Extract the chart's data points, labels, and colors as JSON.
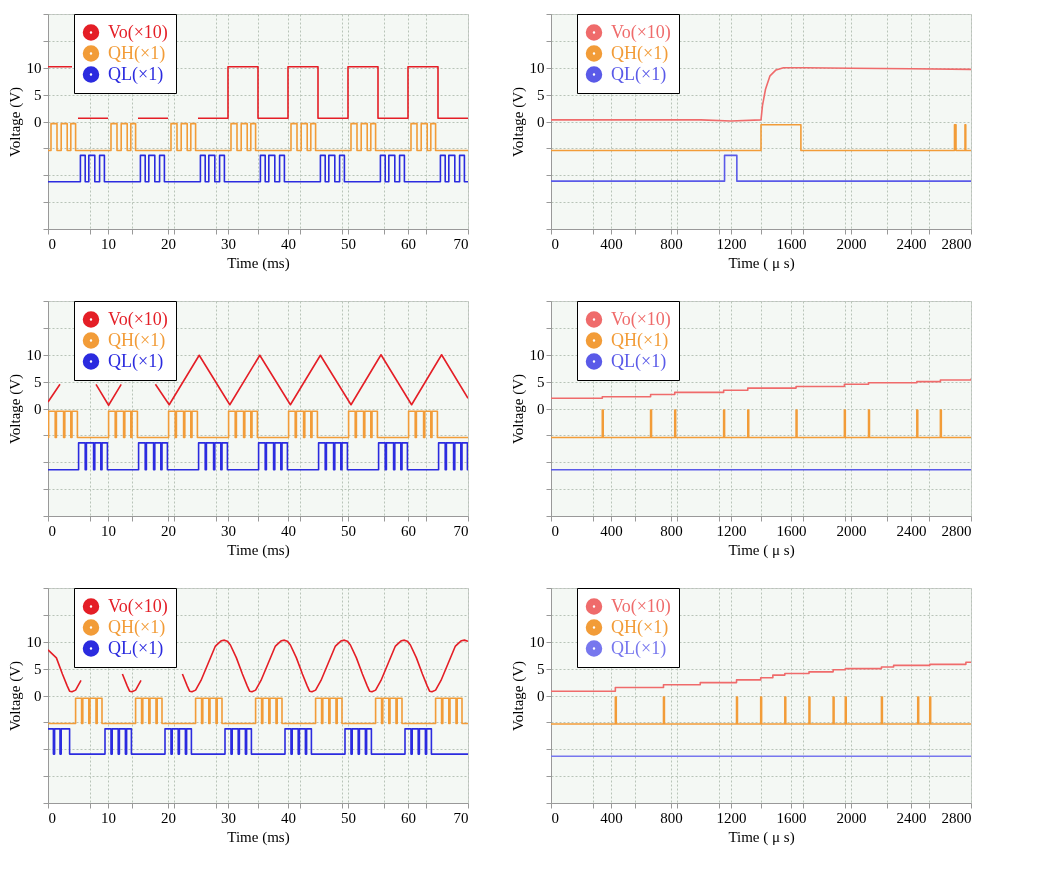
{
  "chart_data": [
    {
      "type": "line",
      "xlabel": "Time (ms)",
      "ylabel": "Voltage (V)",
      "xlim": [
        0,
        70
      ],
      "ylim": [
        -20,
        20
      ],
      "xticks": [
        0,
        {
          "value": 7,
          "label": null
        },
        10,
        {
          "value": 14,
          "label": null
        },
        20,
        {
          "value": 21,
          "label": null
        },
        {
          "value": 28,
          "label": null
        },
        30,
        {
          "value": 35,
          "label": null
        },
        40,
        {
          "value": 42,
          "label": null
        },
        {
          "value": 49,
          "label": null
        },
        50,
        {
          "value": 56,
          "label": null
        },
        60,
        {
          "value": 63,
          "label": null
        },
        70
      ],
      "yticks": [
        {
          "value": -20,
          "label": null
        },
        {
          "value": -15,
          "label": null
        },
        {
          "value": -10,
          "label": null
        },
        {
          "value": -5,
          "label": null
        },
        0,
        5,
        10,
        {
          "value": 15,
          "label": null
        },
        {
          "value": 20,
          "label": null
        }
      ],
      "grid": true,
      "legend": "top left",
      "series": [
        {
          "name": "Vo(×10)",
          "color": "#e41e26",
          "type": "line",
          "x": [
            0,
            4,
            4.5,
            5,
            10,
            12.5,
            15,
            20,
            22.5,
            25,
            30,
            30,
            35,
            35,
            40,
            40,
            45,
            45,
            50,
            50,
            55,
            55,
            60,
            60,
            65,
            65,
            70
          ],
          "values": [
            10.2,
            10.2,
            null,
            0.6,
            0.6,
            null,
            0.6,
            0.6,
            null,
            0.6,
            0.6,
            10.2,
            10.2,
            0.6,
            0.6,
            10.2,
            10.2,
            0.6,
            0.6,
            10.2,
            10.2,
            0.6,
            0.6,
            10.2,
            10.2,
            0.6,
            0.6
          ]
        },
        {
          "name": "QH(×1)",
          "color": "#f29c38",
          "type": "step",
          "x": [
            0,
            0.5,
            1.5,
            2.2,
            3.2,
            3.8,
            4.6,
            10.5,
            11.5,
            12.2,
            13.2,
            13.8,
            14.6,
            20.5,
            21.5,
            22.2,
            23.2,
            23.8,
            24.6,
            30.5,
            31.5,
            32.2,
            33.2,
            33.8,
            34.6,
            40.5,
            41.5,
            42.2,
            43.2,
            43.8,
            44.6,
            50.5,
            51.5,
            52.2,
            53.2,
            53.8,
            54.6,
            60.5,
            61.5,
            62.2,
            63.2,
            63.8,
            64.6,
            70
          ],
          "values": [
            -5.4,
            -0.4,
            -5.4,
            -0.4,
            -5.4,
            -0.4,
            -5.4,
            -0.4,
            -5.4,
            -0.4,
            -5.4,
            -0.4,
            -5.4,
            -0.4,
            -5.4,
            -0.4,
            -5.4,
            -0.4,
            -5.4,
            -0.4,
            -5.4,
            -0.4,
            -5.4,
            -0.4,
            -5.4,
            -0.4,
            -5.4,
            -0.4,
            -5.4,
            -0.4,
            -5.4,
            -0.4,
            -5.4,
            -0.4,
            -5.4,
            -0.4,
            -5.4,
            -0.4,
            -5.4,
            -0.4,
            -5.4,
            -0.4,
            -5.4,
            -5.4
          ]
        },
        {
          "name": "QL(×1)",
          "color": "#2b2bdf",
          "type": "step",
          "x": [
            0,
            5.4,
            6.2,
            6.8,
            7.8,
            8.6,
            9.4,
            15.4,
            16.2,
            16.8,
            17.8,
            18.6,
            19.4,
            25.4,
            26.2,
            26.8,
            27.8,
            28.6,
            29.4,
            35.4,
            36.2,
            36.8,
            37.8,
            38.6,
            39.4,
            45.4,
            46.2,
            46.8,
            47.8,
            48.6,
            49.4,
            55.4,
            56.2,
            56.8,
            57.8,
            58.6,
            59.4,
            65.4,
            66.2,
            66.8,
            67.8,
            68.6,
            69.4,
            70
          ],
          "values": [
            -11.2,
            -6.3,
            -11.2,
            -6.3,
            -11.2,
            -6.3,
            -11.2,
            -6.3,
            -11.2,
            -6.3,
            -11.2,
            -6.3,
            -11.2,
            -6.3,
            -11.2,
            -6.3,
            -11.2,
            -6.3,
            -11.2,
            -6.3,
            -11.2,
            -6.3,
            -11.2,
            -6.3,
            -11.2,
            -6.3,
            -11.2,
            -6.3,
            -11.2,
            -6.3,
            -11.2,
            -6.3,
            -11.2,
            -6.3,
            -11.2,
            -6.3,
            -11.2,
            -6.3,
            -11.2,
            -6.3,
            -11.2,
            -6.3,
            -11.2,
            -11.2
          ]
        }
      ]
    },
    {
      "type": "line",
      "xlabel": "Time ( μ s)",
      "ylabel": "Voltage (V)",
      "xlim": [
        0,
        2800
      ],
      "ylim": [
        -20,
        20
      ],
      "xticks": [
        0,
        {
          "value": 280,
          "label": null
        },
        400,
        {
          "value": 560,
          "label": null
        },
        800,
        {
          "value": 840,
          "label": null
        },
        {
          "value": 1120,
          "label": null
        },
        1200,
        {
          "value": 1400,
          "label": null
        },
        1600,
        {
          "value": 1680,
          "label": null
        },
        {
          "value": 1960,
          "label": null
        },
        2000,
        {
          "value": 2240,
          "label": null
        },
        2400,
        {
          "value": 2520,
          "label": null
        },
        2800
      ],
      "yticks": [
        {
          "value": -20,
          "label": null
        },
        {
          "value": -15,
          "label": null
        },
        {
          "value": -10,
          "label": null
        },
        {
          "value": -5,
          "label": null
        },
        0,
        5,
        10,
        {
          "value": 15,
          "label": null
        },
        {
          "value": 20,
          "label": null
        }
      ],
      "grid": true,
      "legend": "top left",
      "series": [
        {
          "name": "Vo(×10)",
          "color": "#ef6b6b",
          "type": "line",
          "x": [
            0,
            1000,
            1200,
            1400,
            1410,
            1430,
            1460,
            1500,
            1550,
            1700,
            2000,
            2400,
            2800
          ],
          "values": [
            0.3,
            0.3,
            0.1,
            0.3,
            3,
            6,
            8.5,
            9.6,
            10,
            10,
            9.9,
            9.8,
            9.7
          ]
        },
        {
          "name": "QH(×1)",
          "color": "#f29c38",
          "type": "step",
          "x": [
            0,
            1400,
            1666,
            2690,
            2700,
            2760,
            2765,
            2800
          ],
          "values": [
            -5.4,
            -0.6,
            -5.4,
            -0.6,
            -5.4,
            -0.6,
            -5.4,
            -5.4
          ]
        },
        {
          "name": "QL(×1)",
          "color": "#5a5ae8",
          "type": "step",
          "x": [
            0,
            1157,
            1239,
            2800
          ],
          "values": [
            -11.1,
            -6.3,
            -11.1,
            -11.1
          ]
        }
      ]
    },
    {
      "type": "line",
      "xlabel": "Time (ms)",
      "ylabel": "Voltage (V)",
      "xlim": [
        0,
        70
      ],
      "ylim": [
        -20,
        20
      ],
      "xticks": [
        0,
        {
          "value": 7,
          "label": null
        },
        10,
        {
          "value": 14,
          "label": null
        },
        20,
        {
          "value": 21,
          "label": null
        },
        {
          "value": 28,
          "label": null
        },
        30,
        {
          "value": 35,
          "label": null
        },
        40,
        {
          "value": 42,
          "label": null
        },
        {
          "value": 49,
          "label": null
        },
        50,
        {
          "value": 56,
          "label": null
        },
        60,
        {
          "value": 63,
          "label": null
        },
        70
      ],
      "yticks": [
        {
          "value": -20,
          "label": null
        },
        {
          "value": -15,
          "label": null
        },
        {
          "value": -10,
          "label": null
        },
        {
          "value": -5,
          "label": null
        },
        0,
        5,
        10,
        {
          "value": 15,
          "label": null
        },
        {
          "value": 20,
          "label": null
        }
      ],
      "grid": true,
      "legend": "top left",
      "series": [
        {
          "name": "Vo(×10)",
          "color": "#e41e26",
          "type": "line",
          "x": [
            0,
            2.0,
            3.5,
            8.0,
            10.1,
            12.2,
            15.1,
            17.9,
            20.2,
            25.2,
            30.3,
            35.3,
            40.4,
            45.4,
            50.5,
            55.5,
            60.6,
            65.6,
            70
          ],
          "values": [
            1.2,
            4.5,
            null,
            4.5,
            0.6,
            4.5,
            null,
            4.5,
            0.7,
            9.9,
            0.7,
            9.9,
            0.7,
            9.9,
            0.7,
            10,
            0.7,
            10,
            1.9
          ]
        },
        {
          "name": "QH(×1)",
          "color": "#f29c38",
          "type": "step",
          "x": [
            0,
            0.1,
            1.2,
            1.4,
            2.6,
            2.8,
            3.8,
            4.0,
            4.9,
            10.1,
            11.2,
            11.4,
            12.6,
            12.8,
            13.8,
            14.0,
            14.9,
            20.1,
            21.2,
            21.4,
            22.6,
            22.8,
            23.8,
            24.0,
            24.9,
            30.1,
            31.2,
            31.4,
            32.6,
            32.8,
            33.8,
            34.0,
            34.9,
            40.1,
            41.2,
            41.4,
            42.6,
            42.8,
            43.8,
            44.0,
            44.9,
            50.1,
            51.2,
            51.4,
            52.6,
            52.8,
            53.8,
            54.0,
            54.9,
            60.1,
            61.2,
            61.4,
            62.6,
            62.8,
            63.8,
            64.0,
            64.9,
            70
          ],
          "values": [
            -5.4,
            -0.5,
            -5.4,
            -0.5,
            -5.4,
            -0.5,
            -5.4,
            -0.5,
            -5.4,
            -0.5,
            -5.4,
            -0.5,
            -5.4,
            -0.5,
            -5.4,
            -0.5,
            -5.4,
            -0.5,
            -5.4,
            -0.5,
            -5.4,
            -0.5,
            -5.4,
            -0.5,
            -5.4,
            -0.5,
            -5.4,
            -0.5,
            -5.4,
            -0.5,
            -5.4,
            -0.5,
            -5.4,
            -0.5,
            -5.4,
            -0.5,
            -5.4,
            -0.5,
            -5.4,
            -0.5,
            -5.4,
            -0.5,
            -5.4,
            -0.5,
            -5.4,
            -0.5,
            -5.4,
            -0.5,
            -5.4,
            -0.5,
            -5.4,
            -0.5,
            -5.4,
            -0.5,
            -5.4,
            -0.5,
            -5.4,
            -5.4
          ]
        },
        {
          "name": "QL(×1)",
          "color": "#2b2bdf",
          "type": "step",
          "x": [
            0,
            5.1,
            6.2,
            6.4,
            7.6,
            7.8,
            8.8,
            9.0,
            9.9,
            15.1,
            16.2,
            16.4,
            17.6,
            17.8,
            18.8,
            19.0,
            19.9,
            25.1,
            26.2,
            26.4,
            27.6,
            27.8,
            28.8,
            29.0,
            29.9,
            35.1,
            36.2,
            36.4,
            37.6,
            37.8,
            38.8,
            39.0,
            39.9,
            45.1,
            46.2,
            46.4,
            47.6,
            47.8,
            48.8,
            49.0,
            49.9,
            55.1,
            56.2,
            56.4,
            57.6,
            57.8,
            58.8,
            59.0,
            59.9,
            65.1,
            66.2,
            66.4,
            67.6,
            67.8,
            68.8,
            69.0,
            69.9,
            70
          ],
          "values": [
            -11.4,
            -6.4,
            -11.4,
            -6.4,
            -11.4,
            -6.4,
            -11.4,
            -6.4,
            -11.4,
            -6.4,
            -11.4,
            -6.4,
            -11.4,
            -6.4,
            -11.4,
            -6.4,
            -11.4,
            -6.4,
            -11.4,
            -6.4,
            -11.4,
            -6.4,
            -11.4,
            -6.4,
            -11.4,
            -6.4,
            -11.4,
            -6.4,
            -11.4,
            -6.4,
            -11.4,
            -6.4,
            -11.4,
            -6.4,
            -11.4,
            -6.4,
            -11.4,
            -6.4,
            -11.4,
            -6.4,
            -11.4,
            -6.4,
            -11.4,
            -6.4,
            -11.4,
            -6.4,
            -11.4,
            -6.4,
            -11.4,
            -6.4,
            -11.4,
            -6.4,
            -11.4,
            -6.4,
            -11.4,
            -6.4,
            -11.4,
            -11.4
          ]
        }
      ]
    },
    {
      "type": "line",
      "xlabel": "Time ( μ s)",
      "ylabel": "Voltage (V)",
      "xlim": [
        0,
        2800
      ],
      "ylim": [
        -20,
        20
      ],
      "xticks": [
        0,
        {
          "value": 280,
          "label": null
        },
        400,
        {
          "value": 560,
          "label": null
        },
        800,
        {
          "value": 840,
          "label": null
        },
        {
          "value": 1120,
          "label": null
        },
        1200,
        {
          "value": 1400,
          "label": null
        },
        1600,
        {
          "value": 1680,
          "label": null
        },
        {
          "value": 1960,
          "label": null
        },
        2000,
        {
          "value": 2240,
          "label": null
        },
        2400,
        {
          "value": 2520,
          "label": null
        },
        2800
      ],
      "yticks": [
        {
          "value": -20,
          "label": null
        },
        {
          "value": -15,
          "label": null
        },
        {
          "value": -10,
          "label": null
        },
        {
          "value": -5,
          "label": null
        },
        0,
        5,
        10,
        {
          "value": 15,
          "label": null
        },
        {
          "value": 20,
          "label": null
        }
      ],
      "grid": true,
      "legend": "top left",
      "series": [
        {
          "name": "Vo(×10)",
          "color": "#ef6b6b",
          "type": "step",
          "x": [
            0,
            342,
            664,
            825,
            1151,
            1312,
            1634,
            1956,
            2117,
            2439,
            2596,
            2800
          ],
          "values": [
            1.9,
            2.2,
            2.6,
            3.0,
            3.4,
            3.8,
            4.1,
            4.5,
            4.8,
            5.0,
            5.3,
            5.6
          ]
        },
        {
          "name": "QH(×1)",
          "color": "#f29c38",
          "type": "step",
          "x": [
            0,
            342,
            348,
            664,
            670,
            825,
            831,
            1151,
            1157,
            1312,
            1318,
            1634,
            1640,
            1956,
            1962,
            2117,
            2123,
            2439,
            2445,
            2596,
            2602,
            2800
          ],
          "values": [
            -5.4,
            -0.3,
            -5.4,
            -0.3,
            -5.4,
            -0.3,
            -5.4,
            -0.3,
            -5.4,
            -0.3,
            -5.4,
            -0.3,
            -5.4,
            -0.3,
            -5.4,
            -0.3,
            -5.4,
            -0.3,
            -5.4,
            -0.3,
            -5.4,
            -5.4
          ]
        },
        {
          "name": "QL(×1)",
          "color": "#5a5ae8",
          "type": "step",
          "x": [
            0,
            2800
          ],
          "values": [
            -11.4,
            -11.4
          ]
        }
      ]
    },
    {
      "type": "line",
      "xlabel": "Time (ms)",
      "ylabel": "Voltage (V)",
      "xlim": [
        0,
        70
      ],
      "ylim": [
        -20,
        20
      ],
      "xticks": [
        0,
        {
          "value": 7,
          "label": null
        },
        10,
        {
          "value": 14,
          "label": null
        },
        20,
        {
          "value": 21,
          "label": null
        },
        {
          "value": 28,
          "label": null
        },
        30,
        {
          "value": 35,
          "label": null
        },
        40,
        {
          "value": 42,
          "label": null
        },
        {
          "value": 49,
          "label": null
        },
        50,
        {
          "value": 56,
          "label": null
        },
        60,
        {
          "value": 63,
          "label": null
        },
        70
      ],
      "yticks": [
        {
          "value": -20,
          "label": null
        },
        {
          "value": -15,
          "label": null
        },
        {
          "value": -10,
          "label": null
        },
        {
          "value": -5,
          "label": null
        },
        0,
        5,
        10,
        {
          "value": 15,
          "label": null
        },
        {
          "value": 20,
          "label": null
        }
      ],
      "grid": true,
      "legend": "top left",
      "series": [
        {
          "name": "Vo(×10)",
          "color": "#e41e26",
          "type": "line",
          "x": [
            0,
            1.4,
            2.4,
            3.2,
            3.6,
            4,
            4.6,
            5.5,
            8,
            12.4,
            13.2,
            13.6,
            14,
            14.6,
            15.5,
            18,
            22.4,
            23.2,
            23.6,
            24,
            24.6,
            25.5,
            26.7,
            27.9,
            28.9,
            29.4,
            29.9,
            30.4,
            31.4,
            32.4,
            33.2,
            33.6,
            34,
            34.6,
            35.5,
            36.7,
            37.9,
            38.9,
            39.4,
            39.9,
            40.4,
            41.4,
            42.4,
            43.2,
            43.6,
            44,
            44.6,
            45.5,
            46.7,
            47.9,
            48.9,
            49.4,
            49.9,
            50.4,
            51.4,
            52.4,
            53.2,
            53.6,
            54,
            54.6,
            55.5,
            56.7,
            57.9,
            58.9,
            59.4,
            59.9,
            60.4,
            61.4,
            62.4,
            63.2,
            63.6,
            64,
            64.6,
            65.5,
            66.7,
            67.9,
            68.9,
            69.4,
            70
          ],
          "values": [
            8.5,
            7.0,
            4.0,
            1.8,
            0.8,
            0.7,
            1.0,
            2.8,
            null,
            4.0,
            1.8,
            0.8,
            0.7,
            1.0,
            2.8,
            null,
            4.0,
            1.8,
            0.8,
            0.7,
            1.0,
            2.8,
            6.0,
            9.2,
            10.2,
            10.3,
            10.1,
            9.4,
            7.0,
            4.0,
            1.8,
            0.8,
            0.7,
            1.0,
            2.8,
            6.0,
            9.2,
            10.2,
            10.3,
            10.1,
            9.4,
            7.0,
            4.0,
            1.8,
            0.8,
            0.7,
            1.0,
            2.8,
            6.0,
            9.2,
            10.2,
            10.3,
            10.1,
            9.4,
            7.0,
            4.0,
            1.8,
            0.8,
            0.7,
            1.0,
            2.8,
            6.0,
            9.2,
            10.2,
            10.3,
            10.1,
            9.4,
            7.0,
            4.0,
            1.8,
            0.8,
            0.7,
            1.0,
            2.8,
            6.0,
            9.2,
            10.2,
            10.3,
            10.1
          ]
        },
        {
          "name": "QH(×1)",
          "color": "#f29c38",
          "type": "step",
          "x": [
            0,
            4.6,
            5.6,
            5.8,
            6.8,
            7.0,
            8.0,
            8.2,
            9.0,
            14.6,
            15.6,
            15.8,
            16.8,
            17.0,
            18.0,
            18.2,
            19.0,
            24.6,
            25.6,
            25.8,
            26.8,
            27.0,
            28.0,
            28.2,
            29.0,
            34.6,
            35.6,
            35.8,
            36.8,
            37.0,
            38.0,
            38.2,
            39.0,
            44.6,
            45.6,
            45.8,
            46.8,
            47.0,
            48.0,
            48.2,
            49.0,
            54.6,
            55.6,
            55.8,
            56.8,
            57.0,
            58.0,
            58.2,
            59.0,
            64.6,
            65.6,
            65.8,
            66.8,
            67.0,
            68.0,
            68.2,
            69.0,
            70
          ],
          "values": [
            -5.2,
            -0.5,
            -5.2,
            -0.5,
            -5.2,
            -0.5,
            -5.2,
            -0.5,
            -5.2,
            -0.5,
            -5.2,
            -0.5,
            -5.2,
            -0.5,
            -5.2,
            -0.5,
            -5.2,
            -0.5,
            -5.2,
            -0.5,
            -5.2,
            -0.5,
            -5.2,
            -0.5,
            -5.2,
            -0.5,
            -5.2,
            -0.5,
            -5.2,
            -0.5,
            -5.2,
            -0.5,
            -5.2,
            -0.5,
            -5.2,
            -0.5,
            -5.2,
            -0.5,
            -5.2,
            -0.5,
            -5.2,
            -0.5,
            -5.2,
            -0.5,
            -5.2,
            -0.5,
            -5.2,
            -0.5,
            -5.2,
            -0.5,
            -5.2,
            -0.5,
            -5.2,
            -0.5,
            -5.2,
            -0.5,
            -5.2,
            -5.2
          ]
        },
        {
          "name": "QL(×1)",
          "color": "#2b2bdf",
          "type": "step",
          "x": [
            0,
            0.9,
            1.1,
            2.0,
            2.2,
            3.6,
            9.5,
            10.5,
            10.7,
            11.7,
            11.9,
            12.9,
            13.1,
            13.9,
            19.5,
            20.5,
            20.7,
            21.7,
            21.9,
            22.9,
            23.1,
            23.9,
            29.5,
            30.5,
            30.7,
            31.7,
            31.9,
            32.9,
            33.1,
            33.9,
            39.5,
            40.5,
            40.7,
            41.7,
            41.9,
            42.9,
            43.1,
            43.9,
            49.5,
            50.5,
            50.7,
            51.7,
            51.9,
            52.9,
            53.1,
            53.9,
            59.5,
            60.5,
            60.7,
            61.7,
            61.9,
            62.9,
            63.1,
            63.9,
            70
          ],
          "values": [
            -6.2,
            -10.9,
            -6.2,
            -10.9,
            -6.2,
            -10.9,
            -6.2,
            -10.9,
            -6.2,
            -10.9,
            -6.2,
            -10.9,
            -6.2,
            -10.9,
            -6.2,
            -10.9,
            -6.2,
            -10.9,
            -6.2,
            -10.9,
            -6.2,
            -10.9,
            -6.2,
            -10.9,
            -6.2,
            -10.9,
            -6.2,
            -10.9,
            -6.2,
            -10.9,
            -6.2,
            -10.9,
            -6.2,
            -10.9,
            -6.2,
            -10.9,
            -6.2,
            -10.9,
            -6.2,
            -10.9,
            -6.2,
            -10.9,
            -6.2,
            -10.9,
            -6.2,
            -10.9,
            -6.2,
            -10.9,
            -6.2,
            -10.9,
            -6.2,
            -10.9,
            -6.2,
            -10.9,
            -10.9
          ]
        }
      ]
    },
    {
      "type": "line",
      "xlabel": "Time ( μ s)",
      "ylabel": "Voltage (V)",
      "xlim": [
        0,
        2800
      ],
      "ylim": [
        -20,
        20
      ],
      "xticks": [
        0,
        {
          "value": 280,
          "label": null
        },
        400,
        {
          "value": 560,
          "label": null
        },
        800,
        {
          "value": 840,
          "label": null
        },
        {
          "value": 1120,
          "label": null
        },
        1200,
        {
          "value": 1400,
          "label": null
        },
        1600,
        {
          "value": 1680,
          "label": null
        },
        {
          "value": 1960,
          "label": null
        },
        2000,
        {
          "value": 2240,
          "label": null
        },
        2400,
        {
          "value": 2520,
          "label": null
        },
        2800
      ],
      "yticks": [
        {
          "value": -20,
          "label": null
        },
        {
          "value": -15,
          "label": null
        },
        {
          "value": -10,
          "label": null
        },
        {
          "value": -5,
          "label": null
        },
        0,
        5,
        10,
        {
          "value": 15,
          "label": null
        },
        {
          "value": 20,
          "label": null
        }
      ],
      "grid": true,
      "legend": "top left",
      "series": [
        {
          "name": "Vo(×10)",
          "color": "#ef6b6b",
          "type": "step",
          "x": [
            0,
            429,
            750,
            995,
            1237,
            1398,
            1479,
            1559,
            1720,
            1881,
            1962,
            2203,
            2284,
            2525,
            2766,
            2800
          ],
          "values": [
            0.8,
            1.5,
            2.0,
            2.4,
            2.9,
            3.3,
            3.8,
            4.1,
            4.4,
            4.8,
            5.0,
            5.3,
            5.6,
            5.8,
            6.2,
            6.2
          ]
        },
        {
          "name": "QH(×1)",
          "color": "#f29c38",
          "type": "step",
          "x": [
            0,
            429,
            435,
            750,
            756,
            1237,
            1243,
            1398,
            1404,
            1559,
            1565,
            1720,
            1726,
            1881,
            1887,
            1962,
            1968,
            2203,
            2209,
            2445,
            2451,
            2525,
            2531,
            2800
          ],
          "values": [
            -5.3,
            -0.3,
            -5.3,
            -0.3,
            -5.3,
            -0.3,
            -5.3,
            -0.3,
            -5.3,
            -0.3,
            -5.3,
            -0.3,
            -5.3,
            -0.3,
            -5.3,
            -0.3,
            -5.3,
            -0.3,
            -5.3,
            -0.3,
            -5.3,
            -0.3,
            -5.3,
            -5.3
          ]
        },
        {
          "name": "QL(×1)",
          "color": "#7777ee",
          "type": "step",
          "x": [
            0,
            2800
          ],
          "values": [
            -11.3,
            -11.3
          ]
        }
      ]
    }
  ]
}
